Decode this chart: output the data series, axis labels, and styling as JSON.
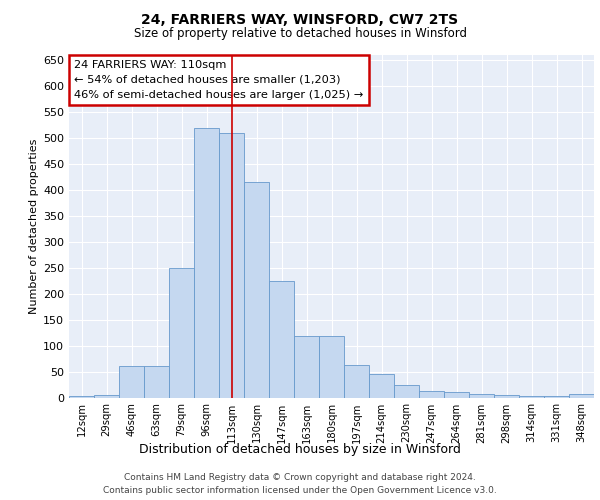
{
  "title1": "24, FARRIERS WAY, WINSFORD, CW7 2TS",
  "title2": "Size of property relative to detached houses in Winsford",
  "xlabel": "Distribution of detached houses by size in Winsford",
  "ylabel": "Number of detached properties",
  "categories": [
    "12sqm",
    "29sqm",
    "46sqm",
    "63sqm",
    "79sqm",
    "96sqm",
    "113sqm",
    "130sqm",
    "147sqm",
    "163sqm",
    "180sqm",
    "197sqm",
    "214sqm",
    "230sqm",
    "247sqm",
    "264sqm",
    "281sqm",
    "298sqm",
    "314sqm",
    "331sqm",
    "348sqm"
  ],
  "values": [
    3,
    5,
    60,
    60,
    250,
    520,
    510,
    415,
    225,
    118,
    118,
    63,
    45,
    25,
    12,
    10,
    7,
    5,
    2,
    2,
    7
  ],
  "bar_color": "#c5d8f0",
  "bar_edge_color": "#6699cc",
  "vline_color": "#cc0000",
  "vline_x_index": 6,
  "annotation_text": "24 FARRIERS WAY: 110sqm\n← 54% of detached houses are smaller (1,203)\n46% of semi-detached houses are larger (1,025) →",
  "footer1": "Contains HM Land Registry data © Crown copyright and database right 2024.",
  "footer2": "Contains public sector information licensed under the Open Government Licence v3.0.",
  "bg_color": "#e8eef8",
  "ylim_max": 660,
  "yticks": [
    0,
    50,
    100,
    150,
    200,
    250,
    300,
    350,
    400,
    450,
    500,
    550,
    600,
    650
  ]
}
